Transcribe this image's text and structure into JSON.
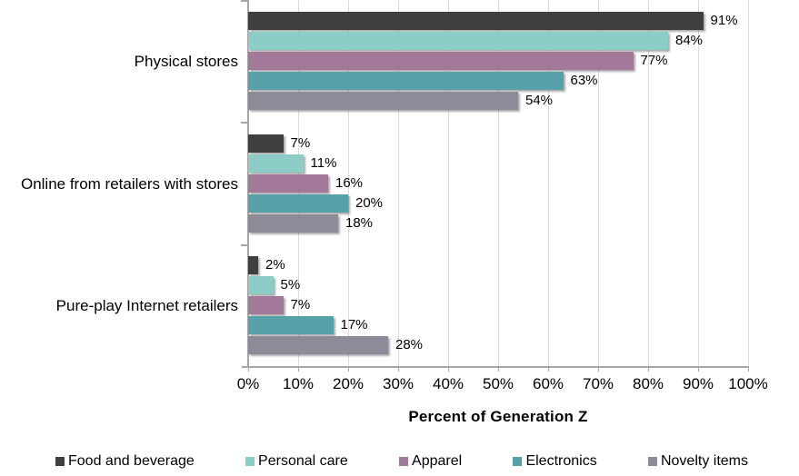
{
  "chart_data": {
    "type": "bar",
    "orientation": "horizontal",
    "xlabel": "Percent of Generation Z",
    "xlim": [
      0,
      100
    ],
    "x_tick_labels": [
      "0%",
      "10%",
      "20%",
      "30%",
      "40%",
      "50%",
      "60%",
      "70%",
      "80%",
      "90%",
      "100%"
    ],
    "grid": true,
    "legend_position": "bottom",
    "value_suffix": "%",
    "categories": [
      "Physical stores",
      "Online from retailers with stores",
      "Pure-play Internet retailers"
    ],
    "series": [
      {
        "name": "Food and beverage",
        "color": "#3f3f3f",
        "values": [
          91,
          7,
          2
        ]
      },
      {
        "name": "Personal care",
        "color": "#8dcdc8",
        "values": [
          84,
          11,
          5
        ]
      },
      {
        "name": "Apparel",
        "color": "#a3799a",
        "values": [
          77,
          16,
          7
        ]
      },
      {
        "name": "Electronics",
        "color": "#58a1ab",
        "values": [
          63,
          20,
          17
        ]
      },
      {
        "name": "Novelty items",
        "color": "#8e8a97",
        "values": [
          54,
          18,
          28
        ]
      }
    ],
    "colors": {
      "axis": "#a6a6a6",
      "gridline": "#d9d9d9",
      "text": "#000000"
    }
  }
}
